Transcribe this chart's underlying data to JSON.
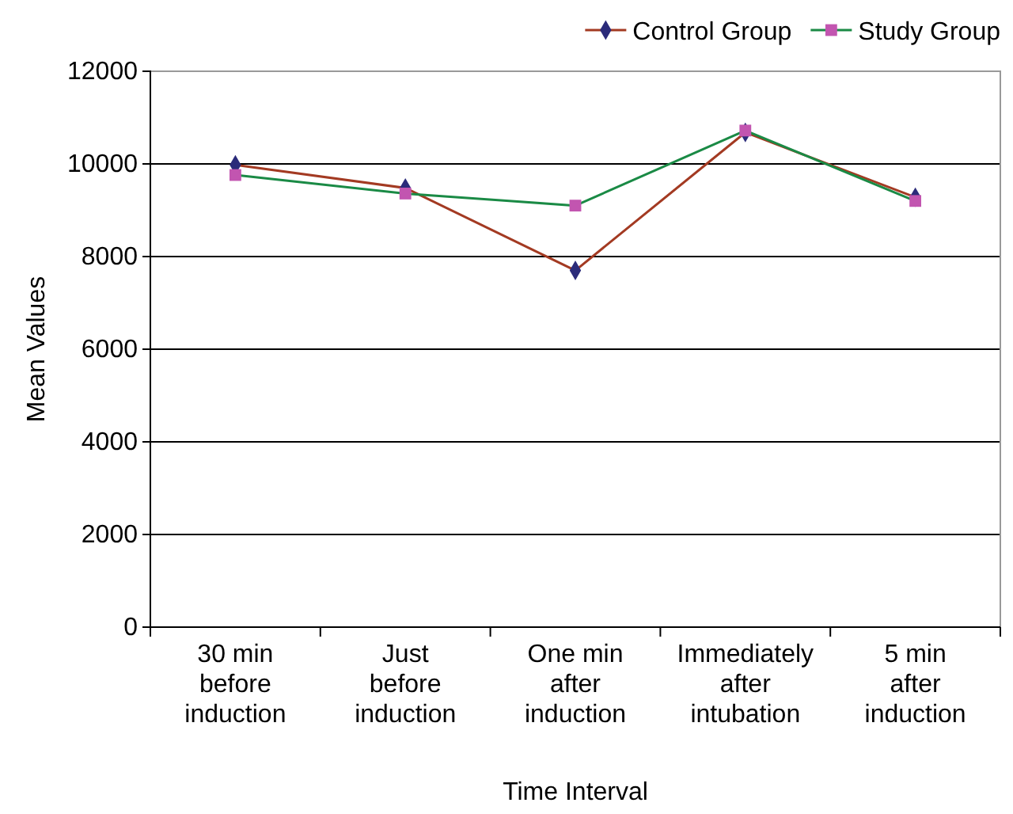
{
  "chart_data": {
    "type": "line",
    "xlabel": "Time Interval",
    "ylabel": "Mean Values",
    "categories": [
      "30 min before induction",
      "Just before induction",
      "One min after induction",
      "Immediately after intubation",
      "5 min after induction"
    ],
    "series": [
      {
        "name": "Control Group",
        "color": "#a33a22",
        "marker": "diamond",
        "colors": [
          "#2b2b7a",
          "#2b2b7a",
          "#2b2b7a",
          "#2b2b7a",
          "#2b2b7a"
        ],
        "values": [
          9980,
          9480,
          7700,
          10680,
          9280
        ]
      },
      {
        "name": "Study Group",
        "color": "#1a8a45",
        "marker": "square",
        "colors": [
          "#c255b0",
          "#c255b0",
          "#c255b0",
          "#c255b0",
          "#c255b0"
        ],
        "values": [
          9760,
          9360,
          9100,
          10720,
          9200
        ]
      }
    ],
    "ylim": [
      0,
      12000
    ],
    "yticks": [
      0,
      2000,
      4000,
      6000,
      8000,
      10000,
      12000
    ],
    "grid": "y",
    "legend": "top right"
  }
}
